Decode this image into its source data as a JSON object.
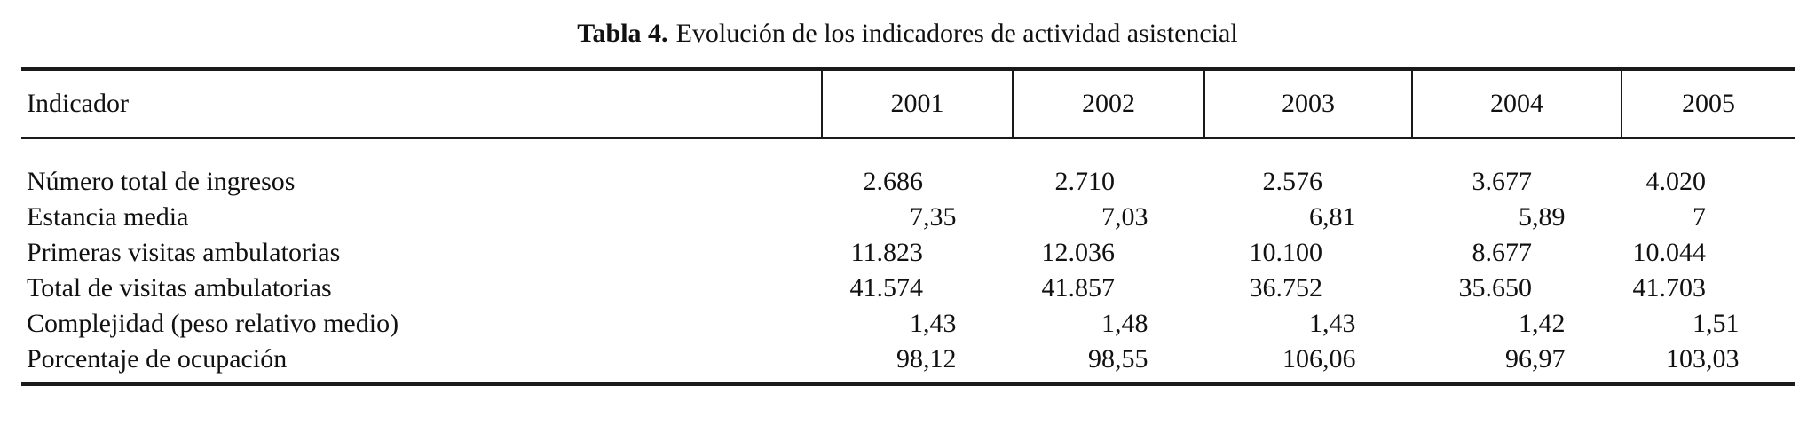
{
  "caption": {
    "bold": "Tabla 4.",
    "text": "Evolución de los indicadores de actividad asistencial"
  },
  "table": {
    "header": {
      "indicator": "Indicador",
      "years": [
        "2001",
        "2002",
        "2003",
        "2004",
        "2005"
      ]
    },
    "rows": [
      {
        "label": "Número total de ingresos",
        "values": [
          "2.686",
          "2.710",
          "2.576",
          "3.677",
          "4.020"
        ]
      },
      {
        "label": "Estancia media",
        "values": [
          "7,35",
          "7,03",
          "6,81",
          "5,89",
          "7"
        ]
      },
      {
        "label": "Primeras visitas ambulatorias",
        "values": [
          "11.823",
          "12.036",
          "10.100",
          "8.677",
          "10.044"
        ]
      },
      {
        "label": "Total de visitas ambulatorias",
        "values": [
          "41.574",
          "41.857",
          "36.752",
          "35.650",
          "41.703"
        ]
      },
      {
        "label": "Complejidad (peso relativo medio)",
        "values": [
          "1,43",
          "1,48",
          "1,43",
          "1,42",
          "1,51"
        ]
      },
      {
        "label": "Porcentaje de ocupación",
        "values": [
          "98,12",
          "98,55",
          "106,06",
          "96,97",
          "103,03"
        ]
      }
    ]
  },
  "colors": {
    "text": "#111111",
    "rule": "#1a1a1a",
    "background": "#ffffff"
  }
}
